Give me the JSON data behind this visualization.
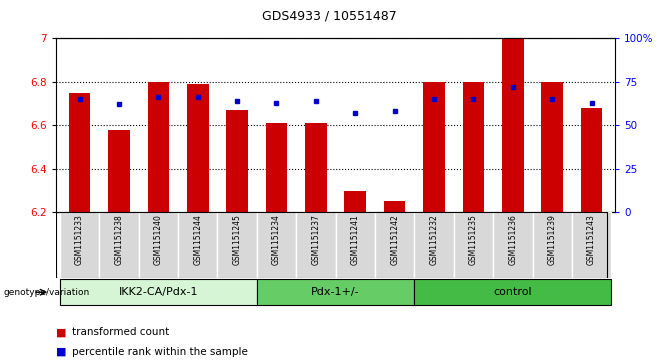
{
  "title": "GDS4933 / 10551487",
  "samples": [
    "GSM1151233",
    "GSM1151238",
    "GSM1151240",
    "GSM1151244",
    "GSM1151245",
    "GSM1151234",
    "GSM1151237",
    "GSM1151241",
    "GSM1151242",
    "GSM1151232",
    "GSM1151235",
    "GSM1151236",
    "GSM1151239",
    "GSM1151243"
  ],
  "red_values": [
    6.75,
    6.58,
    6.8,
    6.79,
    6.67,
    6.61,
    6.61,
    6.3,
    6.25,
    6.8,
    6.8,
    7.0,
    6.8,
    6.68
  ],
  "blue_percentile": [
    65,
    62,
    66,
    66,
    64,
    63,
    64,
    57,
    58,
    65,
    65,
    72,
    65,
    63
  ],
  "groups": [
    {
      "label": "IKK2-CA/Pdx-1",
      "start": 0,
      "end": 5,
      "color": "#d5f5d5"
    },
    {
      "label": "Pdx-1+/-",
      "start": 5,
      "end": 9,
      "color": "#66cc66"
    },
    {
      "label": "control",
      "start": 9,
      "end": 14,
      "color": "#44bb44"
    }
  ],
  "ymin": 6.2,
  "ymax": 7.0,
  "yticks": [
    6.2,
    6.4,
    6.6,
    6.8,
    7.0
  ],
  "right_yticks": [
    0,
    25,
    50,
    75,
    100
  ],
  "bar_color": "#cc0000",
  "dot_color": "#0000cc",
  "bar_width": 0.55,
  "bg_color": "#ffffff",
  "sample_bg": "#d8d8d8",
  "legend_red": "transformed count",
  "legend_blue": "percentile rank within the sample"
}
